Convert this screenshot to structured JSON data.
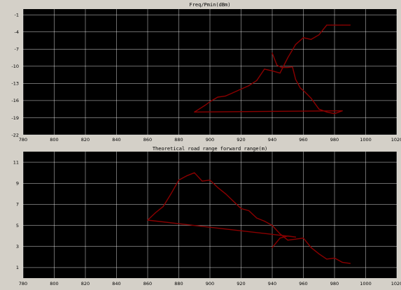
{
  "window": {
    "background": "#d4d0c8"
  },
  "chart_data": [
    {
      "type": "line",
      "title": "Freq/Pmin(dBm)",
      "xlabel": "",
      "ylabel": "",
      "xlim": [
        780,
        1020
      ],
      "ylim": [
        -22,
        0
      ],
      "xticks": [
        780,
        800,
        820,
        840,
        860,
        880,
        900,
        920,
        940,
        960,
        980,
        1000,
        1020
      ],
      "yticks": [
        -1,
        -4,
        -7,
        -10,
        -13,
        -16,
        -19,
        -22
      ],
      "grid": true,
      "background": "#000000",
      "gridColor": "#ffffff",
      "lineColor": "#8b0000",
      "series": [
        {
          "x": [
            940,
            943,
            946,
            950,
            953,
            955,
            958,
            961,
            965,
            970,
            975,
            980,
            985,
            890,
            893,
            897,
            900,
            905,
            910,
            915,
            920,
            925,
            930,
            935,
            940,
            945,
            950,
            955,
            960,
            965,
            970,
            975,
            978,
            981,
            985,
            990
          ],
          "y": [
            -7.7,
            -9.8,
            -10.2,
            -10.2,
            -10.1,
            -12.3,
            -13.8,
            -14.5,
            -15.6,
            -17.5,
            -18.0,
            -18.3,
            -17.8,
            -18.0,
            -17.5,
            -16.8,
            -16.2,
            -15.4,
            -15.2,
            -14.6,
            -14.0,
            -13.4,
            -12.5,
            -10.5,
            -10.8,
            -11.2,
            -8.5,
            -6.2,
            -5.0,
            -5.3,
            -4.5,
            -2.8,
            -2.8,
            -2.8,
            -2.8,
            -2.8
          ]
        }
      ]
    },
    {
      "type": "line",
      "title": "Theoretical road range forward range(m)",
      "xlabel": "",
      "ylabel": "",
      "xlim": [
        780,
        1020
      ],
      "ylim": [
        0,
        12
      ],
      "xticks": [
        780,
        800,
        820,
        840,
        860,
        880,
        900,
        920,
        940,
        960,
        980,
        1000,
        1020
      ],
      "yticks": [
        1,
        3,
        5,
        7,
        9,
        11
      ],
      "grid": true,
      "background": "#000000",
      "gridColor": "#ffffff",
      "lineColor": "#8b0000",
      "series": [
        {
          "x": [
            940,
            945,
            950,
            955,
            860,
            865,
            870,
            875,
            880,
            885,
            890,
            895,
            900,
            905,
            910,
            915,
            920,
            925,
            930,
            935,
            940,
            945,
            950,
            955,
            960,
            965,
            970,
            975,
            980,
            985,
            990
          ],
          "y": [
            2.9,
            3.8,
            4.0,
            3.9,
            5.5,
            6.2,
            6.8,
            8.0,
            9.3,
            9.7,
            10.0,
            9.2,
            9.3,
            8.6,
            8.0,
            7.3,
            6.6,
            6.4,
            5.7,
            5.4,
            5.0,
            4.2,
            3.6,
            3.7,
            3.8,
            2.9,
            2.3,
            1.8,
            1.9,
            1.5,
            1.4
          ]
        }
      ]
    }
  ]
}
